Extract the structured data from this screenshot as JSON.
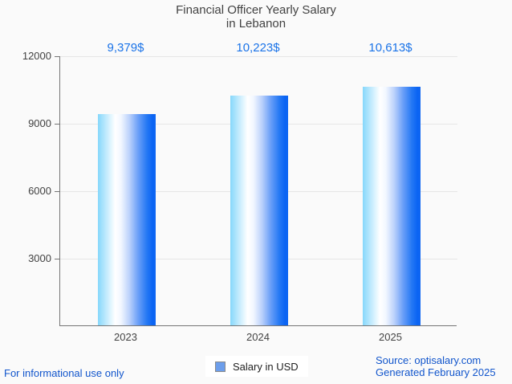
{
  "title": {
    "line1": "Financial Officer Yearly Salary",
    "line2": "in Lebanon"
  },
  "chart_data": {
    "type": "bar",
    "title": "Financial Officer Yearly Salary in Lebanon",
    "categories": [
      "2023",
      "2024",
      "2025"
    ],
    "values": [
      9379,
      10223,
      10613
    ],
    "value_labels": [
      "9,379$",
      "10,223$",
      "10,613$"
    ],
    "series": [
      {
        "name": "Salary in USD",
        "values": [
          9379,
          10223,
          10613
        ]
      }
    ],
    "xlabel": "",
    "ylabel": "",
    "ylim": [
      0,
      12000
    ],
    "yticks": [
      12000,
      9000,
      6000,
      3000
    ],
    "ytick_labels": [
      "12000",
      "9000",
      "6000",
      "3000"
    ],
    "grid": true,
    "legend_position": "bottom",
    "colors": {
      "bar_gradient_left": "#86d7fb",
      "bar_gradient_mid": "#ffffff",
      "bar_gradient_right": "#0f66f3",
      "value_label": "#1a73e8",
      "axis_line": "#757575",
      "gridline": "#e6e6e6",
      "text": "#424242",
      "background": "#fafafa"
    }
  },
  "legend": {
    "label": "Salary in USD",
    "swatch_color": "#6d9eeb"
  },
  "footer": {
    "left": "For informational use only",
    "source": "Source: optisalary.com",
    "generated": "Generated February 2025"
  }
}
